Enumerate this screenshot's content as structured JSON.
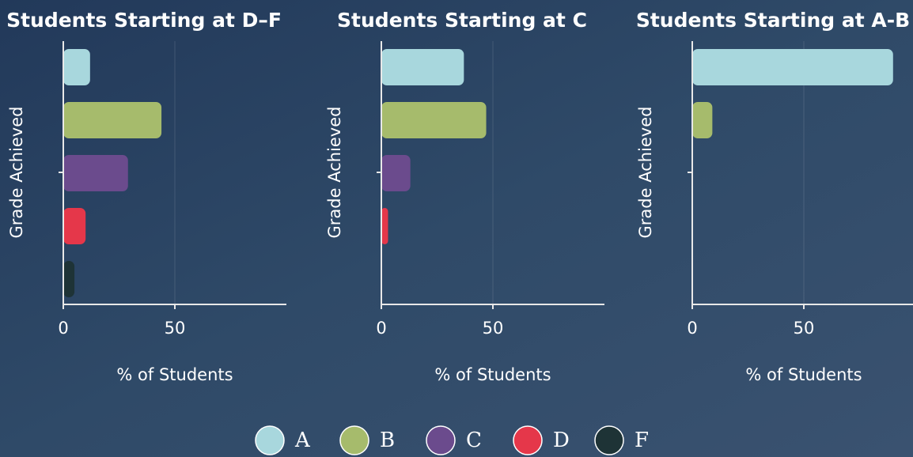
{
  "chart_data": [
    {
      "type": "bar",
      "title": "Students Starting at D–F",
      "xlabel": "% of Students",
      "ylabel": "Grade Achieved",
      "values": [
        12,
        44,
        29,
        10,
        5
      ],
      "xlim": [
        0,
        100
      ],
      "xticks": [
        0,
        50
      ],
      "grid": true
    },
    {
      "type": "bar",
      "title": "Students Starting at C",
      "xlabel": "% of Students",
      "ylabel": "Grade Achieved",
      "values": [
        37,
        47,
        13,
        3,
        0
      ],
      "xlim": [
        0,
        100
      ],
      "xticks": [
        0,
        50
      ],
      "grid": true
    },
    {
      "type": "bar",
      "title": "Students Starting at A-B",
      "xlabel": "% of Students",
      "ylabel": "Grade Achieved",
      "values": [
        90,
        9,
        0,
        0,
        0
      ],
      "xlim": [
        0,
        100
      ],
      "xticks": [
        0,
        50
      ],
      "grid": true
    }
  ],
  "legend": {
    "labels": [
      "A",
      "B",
      "C",
      "D",
      "F"
    ],
    "colors": [
      "#a8d7dd",
      "#a6bb6c",
      "#6b4b8d",
      "#e5374a",
      "#1e3336"
    ]
  }
}
